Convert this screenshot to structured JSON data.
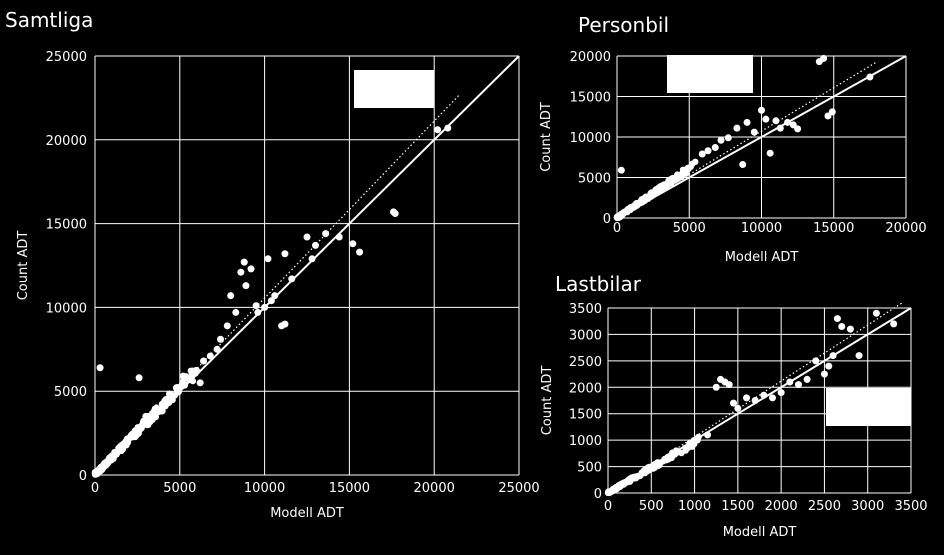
{
  "colors": {
    "background": "#000000",
    "foreground": "#ffffff",
    "grid": "#ffffff"
  },
  "chart_data": [
    {
      "type": "scatter",
      "title": "Samtliga",
      "xlabel": "Modell ADT",
      "ylabel": "Count ADT",
      "xlim": [
        0,
        25000
      ],
      "ylim": [
        0,
        25000
      ],
      "xticks": [
        "0",
        "5000",
        "10000",
        "15000",
        "20000",
        "25000"
      ],
      "yticks": [
        "0",
        "5000",
        "10000",
        "15000",
        "20000",
        "25000"
      ],
      "grid": true,
      "legend": "top-right",
      "reference_line": {
        "x": [
          0,
          25000
        ],
        "y": [
          0,
          25000
        ],
        "style": "solid"
      },
      "trend_line": {
        "x": [
          0,
          21500
        ],
        "y": [
          0,
          22700
        ],
        "style": "dotted"
      },
      "points": {
        "x": [
          8800,
          9200,
          8600,
          10600,
          10200,
          8000,
          8900,
          11200,
          11600,
          12500,
          12800,
          13000,
          13600,
          14400,
          15200,
          15600,
          17600,
          17700,
          20200,
          20800,
          9600,
          10000,
          11000,
          7800,
          7200,
          6800,
          6400,
          6000,
          9500,
          10400,
          8300,
          7400,
          5200,
          5600,
          4800,
          4400,
          6200,
          3000,
          300,
          2600,
          11200
        ],
        "y": [
          12700,
          12300,
          12100,
          10700,
          12900,
          10700,
          11300,
          13200,
          11700,
          14200,
          12900,
          13700,
          14400,
          14200,
          13800,
          13300,
          15700,
          15600,
          20600,
          20700,
          9700,
          10000,
          8900,
          8900,
          7500,
          7100,
          6800,
          6200,
          10100,
          10400,
          9700,
          8100,
          5900,
          5700,
          5200,
          4800,
          5500,
          3500,
          6400,
          5800,
          9000
        ]
      },
      "cluster": {
        "x_range": [
          0,
          6000
        ],
        "y_range": [
          0,
          6500
        ],
        "count": 220
      }
    },
    {
      "type": "scatter",
      "title": "Personbil",
      "xlabel": "Modell ADT",
      "ylabel": "Count ADT",
      "xlim": [
        0,
        20000
      ],
      "ylim": [
        0,
        20000
      ],
      "xticks": [
        "0",
        "5000",
        "10000",
        "15000",
        "20000"
      ],
      "yticks": [
        "0",
        "5000",
        "10000",
        "15000",
        "20000"
      ],
      "grid": true,
      "legend": "top-center",
      "reference_line": {
        "x": [
          0,
          20000
        ],
        "y": [
          0,
          20000
        ],
        "style": "solid"
      },
      "trend_line": {
        "x": [
          0,
          18000
        ],
        "y": [
          0,
          19300
        ],
        "style": "dotted"
      },
      "points": {
        "x": [
          14000,
          14300,
          14600,
          14900,
          17500,
          10000,
          10300,
          11300,
          11800,
          12200,
          9000,
          9500,
          8300,
          7700,
          7200,
          6800,
          6300,
          5900,
          10600,
          12500,
          300,
          11000,
          8700
        ],
        "y": [
          19300,
          19700,
          12600,
          13100,
          17400,
          13300,
          12200,
          11100,
          11800,
          11500,
          11800,
          10600,
          11100,
          9900,
          9600,
          8700,
          8300,
          7900,
          8000,
          11000,
          5900,
          12000,
          6600
        ]
      },
      "cluster": {
        "x_range": [
          0,
          5500
        ],
        "y_range": [
          0,
          7000
        ],
        "count": 180
      }
    },
    {
      "type": "scatter",
      "title": "Lastbilar",
      "xlabel": "Modell ADT",
      "ylabel": "Count ADT",
      "xlim": [
        0,
        3500
      ],
      "ylim": [
        0,
        3500
      ],
      "xticks": [
        "0",
        "500",
        "1000",
        "1500",
        "2000",
        "2500",
        "3000",
        "3500"
      ],
      "yticks": [
        "0",
        "500",
        "1000",
        "1500",
        "2000",
        "2500",
        "3000",
        "3500"
      ],
      "grid": true,
      "legend": "right",
      "reference_line": {
        "x": [
          0,
          3500
        ],
        "y": [
          0,
          3500
        ],
        "style": "solid"
      },
      "trend_line": {
        "x": [
          0,
          3400
        ],
        "y": [
          0,
          3600
        ],
        "style": "dotted"
      },
      "points": {
        "x": [
          1300,
          1350,
          1400,
          1450,
          1600,
          1700,
          1800,
          1900,
          2000,
          2100,
          2200,
          2300,
          2500,
          2600,
          2650,
          2700,
          2800,
          2900,
          3100,
          3300,
          1500,
          1250,
          1150,
          2400,
          2550
        ],
        "y": [
          2150,
          2100,
          2050,
          1700,
          1800,
          1750,
          1850,
          1800,
          1900,
          2100,
          2050,
          2150,
          2250,
          2600,
          3300,
          3150,
          3100,
          2600,
          3400,
          3200,
          1600,
          2000,
          1100,
          2500,
          2400
        ]
      },
      "cluster": {
        "x_range": [
          0,
          1100
        ],
        "y_range": [
          0,
          1100
        ],
        "count": 160
      }
    }
  ]
}
